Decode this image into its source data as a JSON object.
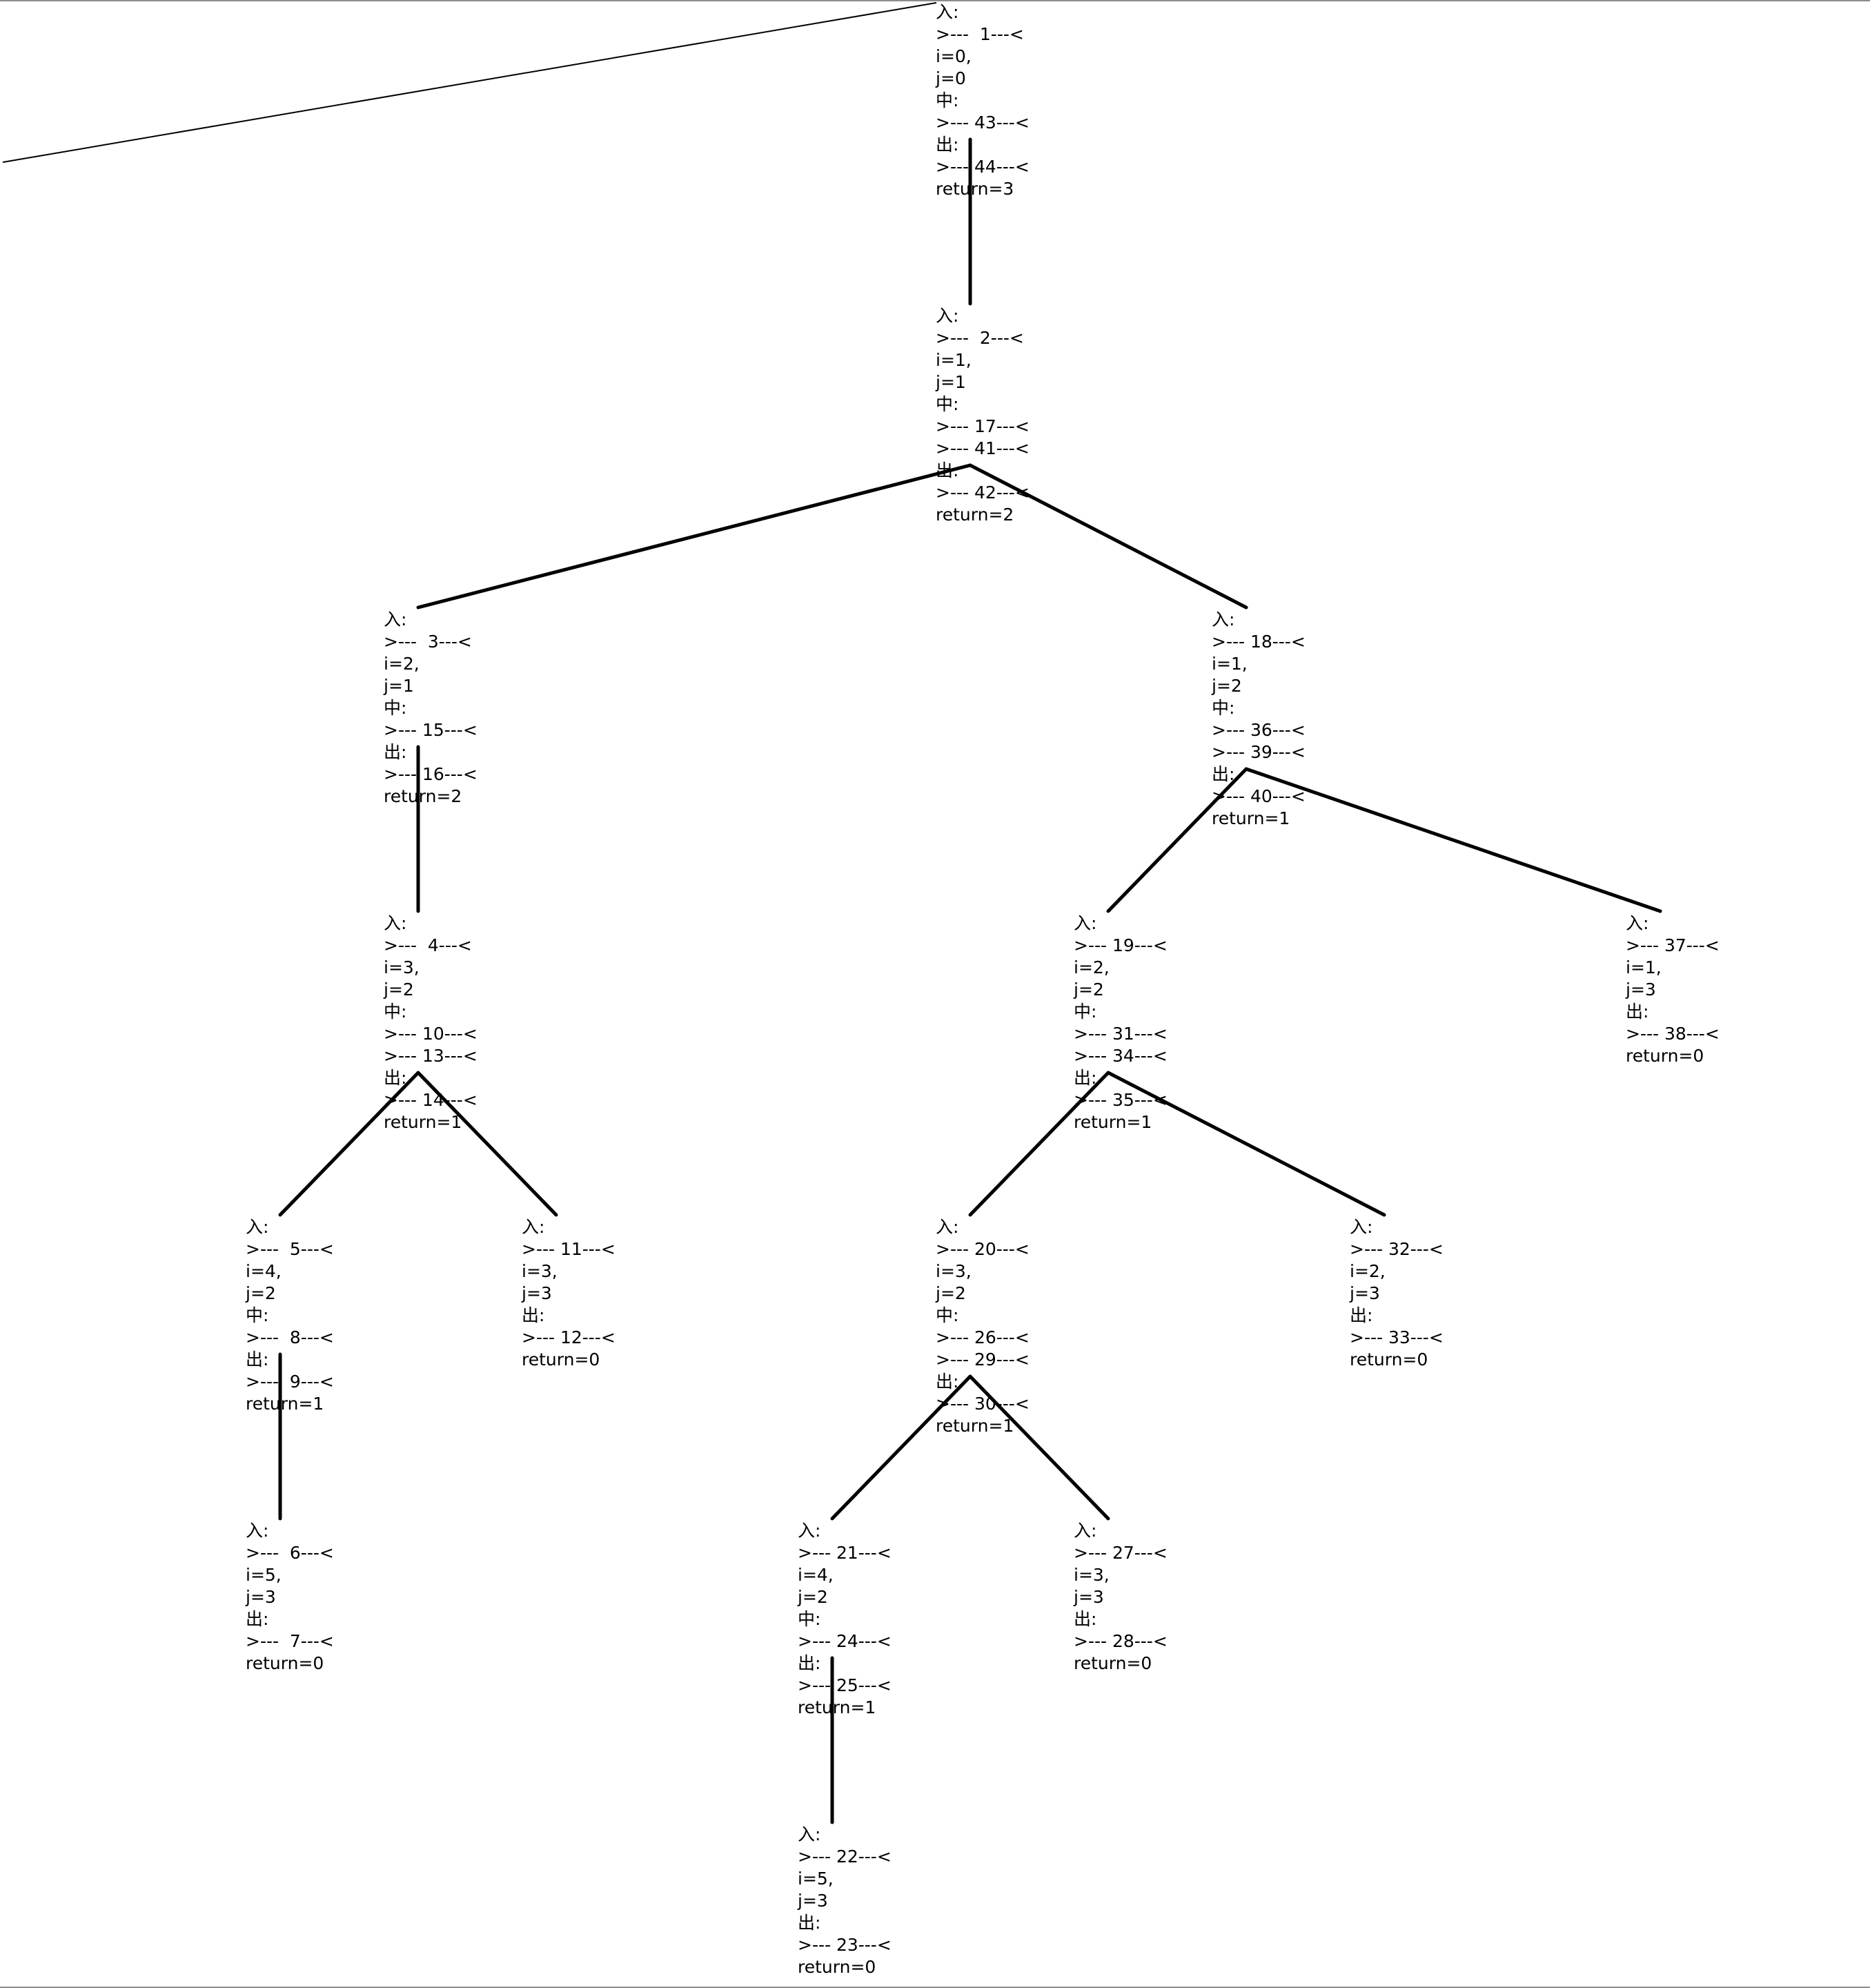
{
  "colors": {
    "edge": "#000000",
    "text": "#000000",
    "background": "#ffffff",
    "border": "#8c8c8c"
  },
  "nodes": [
    {
      "id": "n1",
      "lines": [
        "入:",
        ">---  1---<",
        "i=0,",
        "j=0",
        "中:",
        ">--- 43---<",
        "出:",
        ">--- 44---<",
        "return=3"
      ]
    },
    {
      "id": "n2",
      "lines": [
        "入:",
        ">---  2---<",
        "i=1,",
        "j=1",
        "中:",
        ">--- 17---<",
        ">--- 41---<",
        "出:",
        ">--- 42---<",
        "return=2"
      ]
    },
    {
      "id": "n3",
      "lines": [
        "入:",
        ">---  3---<",
        "i=2,",
        "j=1",
        "中:",
        ">--- 15---<",
        "出:",
        ">--- 16---<",
        "return=2"
      ]
    },
    {
      "id": "n18",
      "lines": [
        "入:",
        ">--- 18---<",
        "i=1,",
        "j=2",
        "中:",
        ">--- 36---<",
        ">--- 39---<",
        "出:",
        ">--- 40---<",
        "return=1"
      ]
    },
    {
      "id": "n4",
      "lines": [
        "入:",
        ">---  4---<",
        "i=3,",
        "j=2",
        "中:",
        ">--- 10---<",
        ">--- 13---<",
        "出:",
        ">--- 14---<",
        "return=1"
      ]
    },
    {
      "id": "n19",
      "lines": [
        "入:",
        ">--- 19---<",
        "i=2,",
        "j=2",
        "中:",
        ">--- 31---<",
        ">--- 34---<",
        "出:",
        ">--- 35---<",
        "return=1"
      ]
    },
    {
      "id": "n37",
      "lines": [
        "入:",
        ">--- 37---<",
        "i=1,",
        "j=3",
        "出:",
        ">--- 38---<",
        "return=0"
      ]
    },
    {
      "id": "n5",
      "lines": [
        "入:",
        ">---  5---<",
        "i=4,",
        "j=2",
        "中:",
        ">---  8---<",
        "出:",
        ">---  9---<",
        "return=1"
      ]
    },
    {
      "id": "n11",
      "lines": [
        "入:",
        ">--- 11---<",
        "i=3,",
        "j=3",
        "出:",
        ">--- 12---<",
        "return=0"
      ]
    },
    {
      "id": "n20",
      "lines": [
        "入:",
        ">--- 20---<",
        "i=3,",
        "j=2",
        "中:",
        ">--- 26---<",
        ">--- 29---<",
        "出:",
        ">--- 30---<",
        "return=1"
      ]
    },
    {
      "id": "n32",
      "lines": [
        "入:",
        ">--- 32---<",
        "i=2,",
        "j=3",
        "出:",
        ">--- 33---<",
        "return=0"
      ]
    },
    {
      "id": "n6",
      "lines": [
        "入:",
        ">---  6---<",
        "i=5,",
        "j=3",
        "出:",
        ">---  7---<",
        "return=0"
      ]
    },
    {
      "id": "n21",
      "lines": [
        "入:",
        ">--- 21---<",
        "i=4,",
        "j=2",
        "中:",
        ">--- 24---<",
        "出:",
        ">--- 25---<",
        "return=1"
      ]
    },
    {
      "id": "n27",
      "lines": [
        "入:",
        ">--- 27---<",
        "i=3,",
        "j=3",
        "出:",
        ">--- 28---<",
        "return=0"
      ]
    },
    {
      "id": "n22",
      "lines": [
        "入:",
        ">--- 22---<",
        "i=5,",
        "j=3",
        "出:",
        ">--- 23---<",
        "return=0"
      ]
    }
  ],
  "edges": [
    {
      "from": "n1",
      "to": "n2"
    },
    {
      "from": "n2",
      "to": "n3"
    },
    {
      "from": "n2",
      "to": "n18"
    },
    {
      "from": "n3",
      "to": "n4"
    },
    {
      "from": "n18",
      "to": "n19"
    },
    {
      "from": "n18",
      "to": "n37"
    },
    {
      "from": "n4",
      "to": "n5"
    },
    {
      "from": "n4",
      "to": "n11"
    },
    {
      "from": "n19",
      "to": "n20"
    },
    {
      "from": "n19",
      "to": "n32"
    },
    {
      "from": "n5",
      "to": "n6"
    },
    {
      "from": "n20",
      "to": "n21"
    },
    {
      "from": "n20",
      "to": "n27"
    },
    {
      "from": "n21",
      "to": "n22"
    }
  ]
}
